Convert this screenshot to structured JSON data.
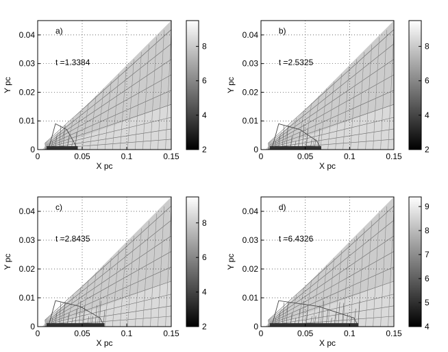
{
  "chart_data": [
    {
      "type": "heatmap",
      "panel_label": "a)",
      "time_label": "t =1.3384",
      "xlabel": "X pc",
      "ylabel": "Y pc",
      "xlim": [
        0,
        0.15
      ],
      "ylim": [
        0,
        0.045
      ],
      "xticks": [
        0,
        0.05,
        0.1,
        0.15
      ],
      "xtick_labels": [
        "0",
        "0.05",
        "0.1",
        "0.15"
      ],
      "yticks": [
        0,
        0.01,
        0.02,
        0.03,
        0.04
      ],
      "ytick_labels": [
        "0",
        "0.01",
        "0.02",
        "0.03",
        "0.04"
      ],
      "grid": true,
      "colorbar": {
        "range": [
          2,
          9.5
        ],
        "ticks": [
          2,
          4,
          6,
          8
        ],
        "tick_labels": [
          "2",
          "4",
          "6",
          "8"
        ]
      },
      "wedge_slope": 0.3,
      "shock_x": 0.045
    },
    {
      "type": "heatmap",
      "panel_label": "b)",
      "time_label": "t =2.5325",
      "xlabel": "X pc",
      "ylabel": "Y pc",
      "xlim": [
        0,
        0.15
      ],
      "ylim": [
        0,
        0.045
      ],
      "xticks": [
        0,
        0.05,
        0.1,
        0.15
      ],
      "xtick_labels": [
        "0",
        "0.05",
        "0.1",
        "0.15"
      ],
      "yticks": [
        0,
        0.01,
        0.02,
        0.03,
        0.04
      ],
      "ytick_labels": [
        "0",
        "0.01",
        "0.02",
        "0.03",
        "0.04"
      ],
      "grid": true,
      "colorbar": {
        "range": [
          2,
          9.5
        ],
        "ticks": [
          2,
          4,
          6,
          8
        ],
        "tick_labels": [
          "2",
          "4",
          "6",
          "8"
        ]
      },
      "wedge_slope": 0.3,
      "shock_x": 0.068
    },
    {
      "type": "heatmap",
      "panel_label": "c)",
      "time_label": "t =2.8435",
      "xlabel": "X pc",
      "ylabel": "Y pc",
      "xlim": [
        0,
        0.15
      ],
      "ylim": [
        0,
        0.045
      ],
      "xticks": [
        0,
        0.05,
        0.1,
        0.15
      ],
      "xtick_labels": [
        "0",
        "0.05",
        "0.1",
        "0.15"
      ],
      "yticks": [
        0,
        0.01,
        0.02,
        0.03,
        0.04
      ],
      "ytick_labels": [
        "0",
        "0.01",
        "0.02",
        "0.03",
        "0.04"
      ],
      "grid": true,
      "colorbar": {
        "range": [
          2,
          9.5
        ],
        "ticks": [
          2,
          4,
          6,
          8
        ],
        "tick_labels": [
          "2",
          "4",
          "6",
          "8"
        ]
      },
      "wedge_slope": 0.3,
      "shock_x": 0.075
    },
    {
      "type": "heatmap",
      "panel_label": "d)",
      "time_label": "t =6.4326",
      "xlabel": "X pc",
      "ylabel": "Y pc",
      "xlim": [
        0,
        0.15
      ],
      "ylim": [
        0,
        0.045
      ],
      "xticks": [
        0,
        0.05,
        0.1,
        0.15
      ],
      "xtick_labels": [
        "0",
        "0.05",
        "0.1",
        "0.15"
      ],
      "yticks": [
        0,
        0.01,
        0.02,
        0.03,
        0.04
      ],
      "ytick_labels": [
        "0",
        "0.01",
        "0.02",
        "0.03",
        "0.04"
      ],
      "grid": true,
      "colorbar": {
        "range": [
          4,
          9.4
        ],
        "ticks": [
          4,
          5,
          6,
          7,
          8,
          9
        ],
        "tick_labels": [
          "4",
          "5",
          "6",
          "7",
          "8",
          "9"
        ]
      },
      "wedge_slope": 0.3,
      "shock_x": 0.11
    }
  ]
}
